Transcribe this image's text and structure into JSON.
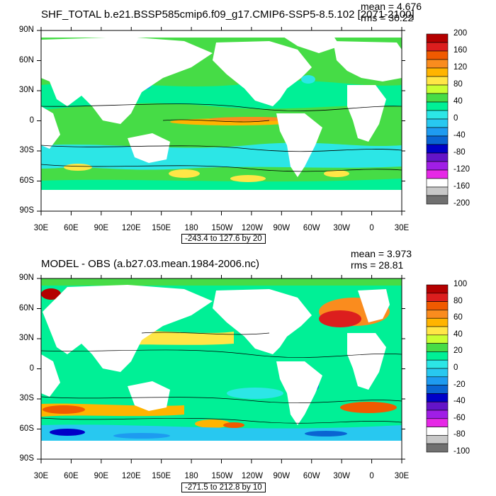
{
  "chart_data": [
    {
      "type": "heatmap",
      "title": "SHF_TOTAL b.e21.BSSP585cmip6.f09_g17.CMIP6-SSP5-8.5.102 [2071-2100]",
      "stats": {
        "mean": "mean = 4.676",
        "rms": "rms = 30.22"
      },
      "contour_range": "-243.4 to 127.6 by 20",
      "x_ticks": [
        "30E",
        "60E",
        "90E",
        "120E",
        "150E",
        "180",
        "150W",
        "120W",
        "90W",
        "60W",
        "30W",
        "0",
        "30E"
      ],
      "y_ticks": [
        "90N",
        "60N",
        "30N",
        "0",
        "30S",
        "60S",
        "90S"
      ],
      "colorbar": {
        "labels": [
          "200",
          "160",
          "120",
          "80",
          "40",
          "0",
          "-40",
          "-80",
          "-120",
          "-160",
          "-200"
        ],
        "colors": [
          "#b40000",
          "#dc1e1e",
          "#f05a00",
          "#fa8c1e",
          "#ffb400",
          "#ffe646",
          "#c8ff32",
          "#46dc46",
          "#00f096",
          "#2ce6e6",
          "#28c8f0",
          "#1e9bf0",
          "#0a64d2",
          "#0000c8",
          "#6414c8",
          "#a01ee6",
          "#e628e6",
          "#ffffff",
          "#c8c8c8",
          "#707070"
        ]
      },
      "xlim": [
        "30E",
        "30E"
      ],
      "ylim": [
        "90S",
        "90N"
      ]
    },
    {
      "type": "heatmap",
      "title": "MODEL - OBS (a.b27.03.mean.1984-2006.nc)",
      "stats": {
        "mean": "mean = 3.973",
        "rms": "rms = 28.81"
      },
      "contour_range": "-271.5 to 212.8 by 10",
      "x_ticks": [
        "30E",
        "60E",
        "90E",
        "120E",
        "150E",
        "180",
        "150W",
        "120W",
        "90W",
        "60W",
        "30W",
        "0",
        "30E"
      ],
      "y_ticks": [
        "90N",
        "60N",
        "30N",
        "0",
        "30S",
        "60S",
        "90S"
      ],
      "colorbar": {
        "labels": [
          "100",
          "80",
          "60",
          "40",
          "20",
          "0",
          "-20",
          "-40",
          "-60",
          "-80",
          "-100"
        ],
        "colors": [
          "#b40000",
          "#dc1e1e",
          "#f05a00",
          "#fa8c1e",
          "#ffb400",
          "#ffe646",
          "#c8ff32",
          "#46dc46",
          "#00f096",
          "#2ce6e6",
          "#28c8f0",
          "#1e9bf0",
          "#0a64d2",
          "#0000c8",
          "#6414c8",
          "#a01ee6",
          "#e628e6",
          "#ffffff",
          "#c8c8c8",
          "#707070"
        ]
      },
      "xlim": [
        "30E",
        "30E"
      ],
      "ylim": [
        "90S",
        "90N"
      ]
    }
  ]
}
